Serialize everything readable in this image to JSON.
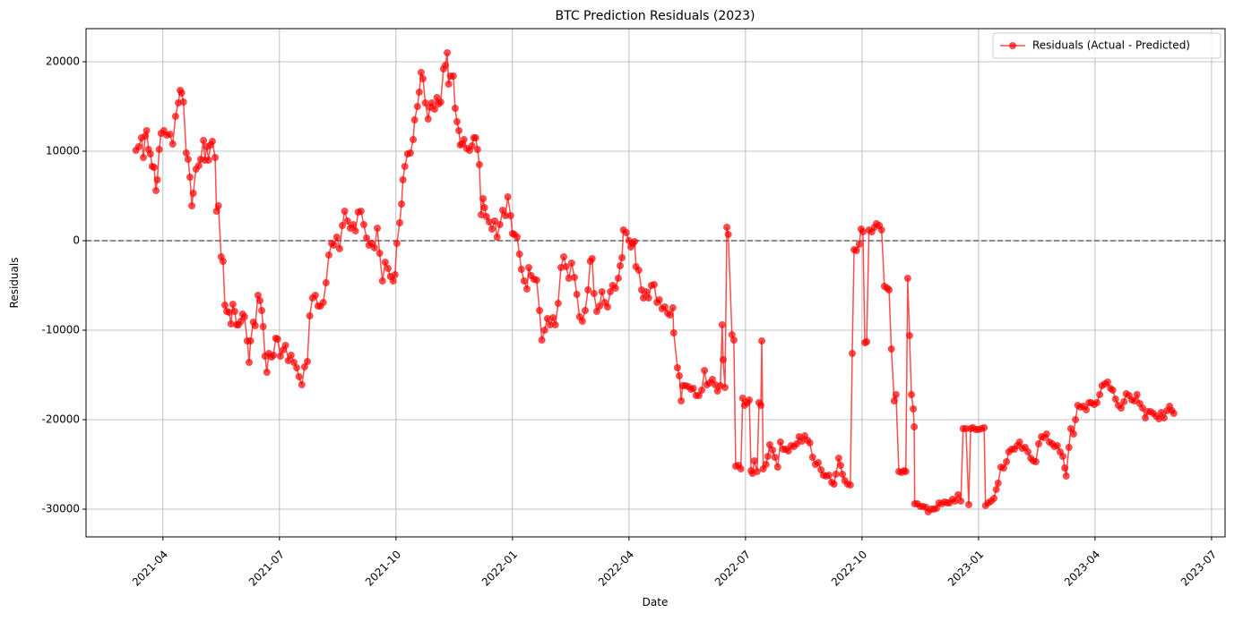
{
  "chart_data": {
    "type": "line",
    "title": "BTC Prediction Residuals (2023)",
    "x_label": "Date",
    "y_label": "Residuals",
    "series": [
      {
        "name": "Residuals (Actual - Predicted)",
        "color": "#ff0000",
        "x": [
          2021.192,
          2021.198,
          2021.204,
          2021.208,
          2021.212,
          2021.215,
          2021.219,
          2021.223,
          2021.227,
          2021.231,
          2021.235,
          2021.238,
          2021.242,
          2021.246,
          2021.252,
          2021.258,
          2021.265,
          2021.271,
          2021.277,
          2021.283,
          2021.287,
          2021.29,
          2021.294,
          2021.3,
          2021.304,
          2021.308,
          2021.312,
          2021.315,
          2021.321,
          2021.327,
          2021.331,
          2021.337,
          2021.34,
          2021.344,
          2021.348,
          2021.352,
          2021.356,
          2021.362,
          2021.365,
          2021.369,
          2021.375,
          2021.379,
          2021.383,
          2021.387,
          2021.392,
          2021.396,
          2021.4,
          2021.404,
          2021.408,
          2021.412,
          2021.417,
          2021.421,
          2021.425,
          2021.431,
          2021.435,
          2021.438,
          2021.444,
          2021.448,
          2021.454,
          2021.458,
          2021.462,
          2021.465,
          2021.469,
          2021.473,
          2021.477,
          2021.483,
          2021.487,
          2021.492,
          2021.496,
          2021.502,
          2021.508,
          2021.513,
          2021.519,
          2021.525,
          2021.531,
          2021.537,
          2021.542,
          2021.548,
          2021.554,
          2021.56,
          2021.565,
          2021.571,
          2021.577,
          2021.583,
          2021.588,
          2021.594,
          2021.6,
          2021.606,
          2021.612,
          2021.617,
          2021.623,
          2021.629,
          2021.635,
          2021.64,
          2021.646,
          2021.652,
          2021.658,
          2021.663,
          2021.669,
          2021.675,
          2021.681,
          2021.687,
          2021.692,
          2021.698,
          2021.704,
          2021.71,
          2021.715,
          2021.721,
          2021.727,
          2021.733,
          2021.738,
          2021.744,
          2021.748,
          2021.752,
          2021.758,
          2021.762,
          2021.765,
          2021.769,
          2021.775,
          2021.781,
          2021.787,
          2021.79,
          2021.796,
          2021.8,
          2021.804,
          2021.808,
          2021.813,
          2021.819,
          2021.823,
          2021.827,
          2021.833,
          2021.838,
          2021.842,
          2021.846,
          2021.852,
          2021.856,
          2021.86,
          2021.863,
          2021.867,
          2021.873,
          2021.877,
          2021.881,
          2021.885,
          2021.888,
          2021.892,
          2021.896,
          2021.902,
          2021.908,
          2021.913,
          2021.917,
          2021.921,
          2021.925,
          2021.929,
          2021.933,
          2021.937,
          2021.94,
          2021.944,
          2021.95,
          2021.956,
          2021.962,
          2021.967,
          2021.973,
          2021.979,
          2021.985,
          2021.99,
          2021.996,
          2022.0,
          2022.004,
          2022.01,
          2022.015,
          2022.019,
          2022.025,
          2022.031,
          2022.035,
          2022.04,
          2022.046,
          2022.052,
          2022.058,
          2022.063,
          2022.069,
          2022.075,
          2022.081,
          2022.087,
          2022.092,
          2022.098,
          2022.104,
          2022.11,
          2022.115,
          2022.121,
          2022.127,
          2022.133,
          2022.138,
          2022.144,
          2022.15,
          2022.156,
          2022.162,
          2022.167,
          2022.171,
          2022.175,
          2022.181,
          2022.187,
          2022.192,
          2022.198,
          2022.204,
          2022.21,
          2022.215,
          2022.221,
          2022.227,
          2022.231,
          2022.235,
          2022.238,
          2022.244,
          2022.25,
          2022.254,
          2022.258,
          2022.262,
          2022.265,
          2022.271,
          2022.277,
          2022.281,
          2022.287,
          2022.292,
          2022.298,
          2022.304,
          2022.31,
          2022.315,
          2022.321,
          2022.327,
          2022.333,
          2022.338,
          2022.344,
          2022.346,
          2022.354,
          2022.358,
          2022.362,
          2022.365,
          2022.371,
          2022.377,
          2022.383,
          2022.388,
          2022.394,
          2022.4,
          2022.406,
          2022.412,
          2022.417,
          2022.423,
          2022.429,
          2022.435,
          2022.44,
          2022.446,
          2022.45,
          2022.452,
          2022.456,
          2022.46,
          2022.463,
          2022.471,
          2022.475,
          2022.479,
          2022.485,
          2022.49,
          2022.494,
          2022.498,
          2022.504,
          2022.508,
          2022.512,
          2022.515,
          2022.519,
          2022.525,
          2022.529,
          2022.533,
          2022.535,
          2022.538,
          2022.544,
          2022.548,
          2022.552,
          2022.558,
          2022.563,
          2022.569,
          2022.575,
          2022.581,
          2022.587,
          2022.592,
          2022.598,
          2022.604,
          2022.61,
          2022.615,
          2022.621,
          2022.627,
          2022.633,
          2022.638,
          2022.644,
          2022.65,
          2022.656,
          2022.662,
          2022.667,
          2022.673,
          2022.679,
          2022.685,
          2022.69,
          2022.694,
          2022.7,
          2022.704,
          2022.708,
          2022.713,
          2022.719,
          2022.725,
          2022.729,
          2022.733,
          2022.738,
          2022.744,
          2022.748,
          2022.752,
          2022.756,
          2022.76,
          2022.765,
          2022.771,
          2022.777,
          2022.781,
          2022.787,
          2022.792,
          2022.798,
          2022.804,
          2022.808,
          2022.813,
          2022.819,
          2022.823,
          2022.829,
          2022.835,
          2022.84,
          2022.844,
          2022.848,
          2022.852,
          2022.856,
          2022.86,
          2022.862,
          2022.863,
          2022.869,
          2022.875,
          2022.881,
          2022.887,
          2022.892,
          2022.898,
          2022.904,
          2022.91,
          2022.915,
          2022.921,
          2022.927,
          2022.933,
          2022.938,
          2022.944,
          2022.95,
          2022.956,
          2022.962,
          2022.967,
          2022.973,
          2022.979,
          2022.983,
          2022.988,
          2022.994,
          2023.0,
          2023.006,
          2023.012,
          2023.015,
          2023.021,
          2023.027,
          2023.033,
          2023.038,
          2023.042,
          2023.048,
          2023.054,
          2023.06,
          2023.065,
          2023.071,
          2023.077,
          2023.083,
          2023.088,
          2023.094,
          2023.1,
          2023.106,
          2023.112,
          2023.117,
          2023.123,
          2023.129,
          2023.135,
          2023.14,
          2023.146,
          2023.152,
          2023.158,
          2023.163,
          2023.169,
          2023.175,
          2023.181,
          2023.185,
          2023.188,
          2023.194,
          2023.198,
          2023.204,
          2023.208,
          2023.213,
          2023.219,
          2023.225,
          2023.231,
          2023.237,
          2023.242,
          2023.248,
          2023.254,
          2023.26,
          2023.265,
          2023.271,
          2023.277,
          2023.283,
          2023.288,
          2023.294,
          2023.3,
          2023.306,
          2023.312,
          2023.317,
          2023.323,
          2023.329,
          2023.335,
          2023.34,
          2023.346,
          2023.352,
          2023.358,
          2023.363,
          2023.369,
          2023.375,
          2023.381,
          2023.387,
          2023.392,
          2023.398,
          2023.404,
          2023.41,
          2023.415,
          2023.419
        ],
        "values": [
          10100,
          10500,
          11500,
          9300,
          11700,
          12300,
          10200,
          9700,
          8300,
          8200,
          5600,
          6800,
          10200,
          12000,
          12300,
          11800,
          11900,
          10800,
          13900,
          15400,
          16800,
          16500,
          15500,
          9800,
          9100,
          7100,
          3900,
          5300,
          8000,
          8400,
          9100,
          11200,
          9000,
          10500,
          9000,
          10700,
          11100,
          9300,
          3300,
          3900,
          -1800,
          -2300,
          -7200,
          -7900,
          -8000,
          -9300,
          -7100,
          -7900,
          -9400,
          -9400,
          -9000,
          -8200,
          -8500,
          -11200,
          -13600,
          -11200,
          -9100,
          -9500,
          -6100,
          -6700,
          -7800,
          -9600,
          -12900,
          -14700,
          -12600,
          -13000,
          -12800,
          -10900,
          -11000,
          -12900,
          -12200,
          -11700,
          -13400,
          -12800,
          -13600,
          -14200,
          -15200,
          -16100,
          -14100,
          -13500,
          -8400,
          -6400,
          -6100,
          -7300,
          -7300,
          -6900,
          -4700,
          -1600,
          -300,
          -500,
          400,
          -900,
          1700,
          3300,
          2200,
          1400,
          1800,
          1100,
          3200,
          3300,
          1800,
          300,
          -500,
          -300,
          -800,
          1400,
          -1400,
          -4500,
          -2400,
          -3100,
          -4000,
          -4500,
          -3800,
          -300,
          2000,
          4100,
          6800,
          8300,
          9700,
          9800,
          11300,
          13500,
          15000,
          16600,
          18800,
          18100,
          15400,
          13600,
          14900,
          15400,
          14700,
          16000,
          15300,
          15500,
          19200,
          19600,
          21000,
          17500,
          18400,
          18400,
          14800,
          13300,
          12300,
          10700,
          10800,
          11300,
          10300,
          10100,
          10600,
          11500,
          11500,
          10200,
          8500,
          2900,
          4700,
          3700,
          2700,
          2100,
          1300,
          2200,
          400,
          1800,
          3400,
          2800,
          4900,
          2800,
          800,
          700,
          400,
          -1500,
          -3200,
          -4500,
          -5400,
          -3000,
          -3900,
          -4300,
          -4400,
          -7800,
          -11100,
          -10000,
          -8700,
          -9400,
          -8600,
          -9400,
          -7000,
          -3000,
          -1800,
          -2900,
          -4200,
          -2500,
          -4100,
          -6000,
          -8500,
          -9000,
          -7800,
          -5500,
          -2300,
          -2000,
          -5900,
          -7900,
          -7300,
          -5700,
          -6900,
          -7400,
          -5700,
          -5000,
          -5300,
          -4200,
          -2800,
          -1900,
          1200,
          900,
          0,
          -700,
          -300,
          -100,
          -2900,
          -3300,
          -5500,
          -6400,
          -5700,
          -6400,
          -5000,
          -4900,
          -6900,
          -6600,
          -7600,
          -7400,
          -8100,
          -8300,
          -7500,
          -10300,
          -14200,
          -15100,
          -17900,
          -16200,
          -16200,
          -16300,
          -16600,
          -16500,
          -17300,
          -17300,
          -16700,
          -14500,
          -16100,
          -15900,
          -15500,
          -16100,
          -16800,
          -16200,
          -9400,
          -13300,
          -16400,
          1500,
          700,
          -10500,
          -11100,
          -25200,
          -25100,
          -25500,
          -17600,
          -18400,
          -18100,
          -17800,
          -25700,
          -26000,
          -24600,
          -25800,
          -18100,
          -18400,
          -11200,
          -25500,
          -25000,
          -24100,
          -22800,
          -23400,
          -24200,
          -25300,
          -22500,
          -23300,
          -23300,
          -23500,
          -22900,
          -23000,
          -22700,
          -21900,
          -22400,
          -21800,
          -22300,
          -22600,
          -24200,
          -25000,
          -24800,
          -25600,
          -26200,
          -26300,
          -26200,
          -27000,
          -27200,
          -26100,
          -24300,
          -25100,
          -26100,
          -26800,
          -27200,
          -27300,
          -12600,
          -1000,
          -1100,
          -400,
          1300,
          1000,
          -11400,
          -11300,
          1200,
          1000,
          1500,
          1900,
          1700,
          1200,
          -5100,
          -5300,
          -5500,
          -12100,
          -17900,
          -17200,
          -25800,
          -25900,
          -25700,
          -25800,
          -4200,
          -10600,
          -17200,
          -18800,
          -20800,
          -29400,
          -29400,
          -29700,
          -29700,
          -29800,
          -30300,
          -30000,
          -30000,
          -29900,
          -29300,
          -29400,
          -29200,
          -29300,
          -29300,
          -28900,
          -29100,
          -28400,
          -29100,
          -21000,
          -21000,
          -29500,
          -21000,
          -20900,
          -21100,
          -21100,
          -21000,
          -20900,
          -29600,
          -29300,
          -29100,
          -28800,
          -27800,
          -27100,
          -25300,
          -25400,
          -24700,
          -23600,
          -23300,
          -23300,
          -22900,
          -22500,
          -23200,
          -23100,
          -23600,
          -24300,
          -24600,
          -24700,
          -22700,
          -21900,
          -22000,
          -21600,
          -22500,
          -22700,
          -23000,
          -22900,
          -23600,
          -24100,
          -25400,
          -26300,
          -23100,
          -21000,
          -21600,
          -20000,
          -18400,
          -18600,
          -18500,
          -18900,
          -18100,
          -18100,
          -18300,
          -18100,
          -17200,
          -16200,
          -16000,
          -15800,
          -16500,
          -16700,
          -17700,
          -18400,
          -18700,
          -18000,
          -17100,
          -17300,
          -17800,
          -17900,
          -17200,
          -18200,
          -18700,
          -19800,
          -19100,
          -19100,
          -19300,
          -19600,
          -19900,
          -19200,
          -19800,
          -19000,
          -18500,
          -19000,
          -19300
        ]
      }
    ],
    "reference_line": {
      "y": 0,
      "color": "#666666"
    },
    "xlim": [
      2021.085,
      2023.529
    ],
    "xticks": [
      {
        "value": 2021.25,
        "label": "2021-04"
      },
      {
        "value": 2021.5,
        "label": "2021-07"
      },
      {
        "value": 2021.75,
        "label": "2021-10"
      },
      {
        "value": 2022.0,
        "label": "2022-01"
      },
      {
        "value": 2022.25,
        "label": "2022-04"
      },
      {
        "value": 2022.5,
        "label": "2022-07"
      },
      {
        "value": 2022.75,
        "label": "2022-10"
      },
      {
        "value": 2023.0,
        "label": "2023-01"
      },
      {
        "value": 2023.25,
        "label": "2023-04"
      },
      {
        "value": 2023.5,
        "label": "2023-07"
      }
    ],
    "ylim": [
      -33100,
      23700
    ],
    "yticks": [
      -30000,
      -20000,
      -10000,
      0,
      10000,
      20000
    ],
    "grid": true,
    "legend": "upper right"
  }
}
